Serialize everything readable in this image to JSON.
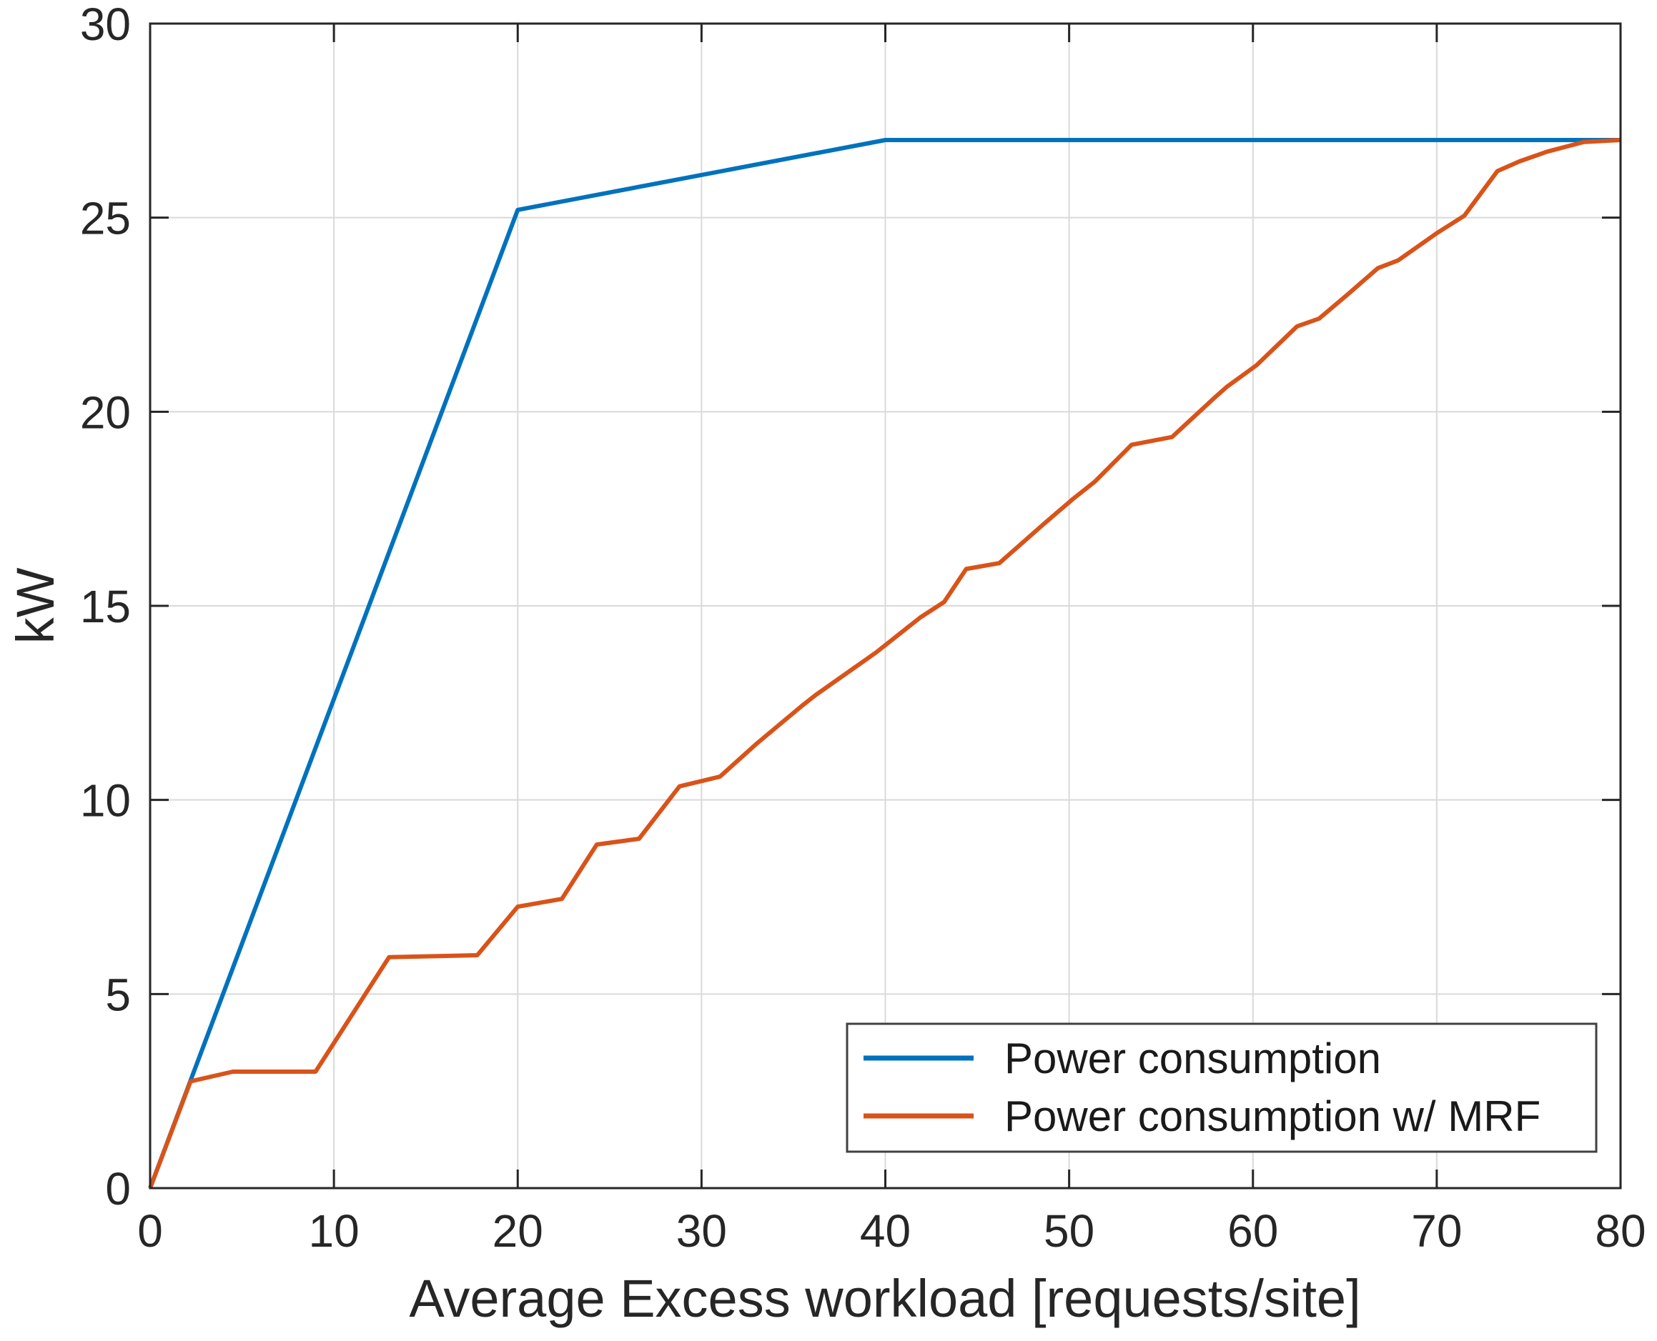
{
  "figure": {
    "background_color": "#ffffff"
  },
  "chart_data": {
    "type": "line",
    "title": "",
    "xlabel": "Average Excess workload [requests/site]",
    "ylabel": "kW",
    "xlim": [
      0,
      80
    ],
    "ylim": [
      0,
      30
    ],
    "xticks": [
      0,
      10,
      20,
      30,
      40,
      50,
      60,
      70,
      80
    ],
    "yticks": [
      0,
      5,
      10,
      15,
      20,
      25,
      30
    ],
    "grid": true,
    "grid_color": "#d9d9d9",
    "axis_color": "#262626",
    "legend_position": "inside-bottom-right",
    "series": [
      {
        "name": "Power consumption",
        "color": "#0072BD",
        "points": [
          [
            0,
            0
          ],
          [
            20,
            25.2
          ],
          [
            40,
            27
          ],
          [
            80,
            27
          ]
        ]
      },
      {
        "name": "Power consumption w/ MRF",
        "color": "#D95319",
        "points": [
          [
            0,
            0
          ],
          [
            2.2,
            2.75
          ],
          [
            4.5,
            3.0
          ],
          [
            9,
            3.0
          ],
          [
            13,
            5.95
          ],
          [
            17.8,
            6.0
          ],
          [
            20,
            7.25
          ],
          [
            22.4,
            7.45
          ],
          [
            24.3,
            8.85
          ],
          [
            26.6,
            9.0
          ],
          [
            28.8,
            10.35
          ],
          [
            31,
            10.6
          ],
          [
            33,
            11.45
          ],
          [
            35.4,
            12.4
          ],
          [
            36.2,
            12.7
          ],
          [
            38,
            13.3
          ],
          [
            39.5,
            13.8
          ],
          [
            41.9,
            14.7
          ],
          [
            43.2,
            15.1
          ],
          [
            44.4,
            15.95
          ],
          [
            46.2,
            16.1
          ],
          [
            48.6,
            17.1
          ],
          [
            50.2,
            17.75
          ],
          [
            51.4,
            18.2
          ],
          [
            53.4,
            19.15
          ],
          [
            55.6,
            19.35
          ],
          [
            58,
            20.4
          ],
          [
            58.6,
            20.65
          ],
          [
            60.2,
            21.2
          ],
          [
            62.4,
            22.2
          ],
          [
            63.6,
            22.4
          ],
          [
            65.1,
            23.0
          ],
          [
            66.8,
            23.7
          ],
          [
            67.9,
            23.9
          ],
          [
            70,
            24.6
          ],
          [
            71.5,
            25.05
          ],
          [
            73.3,
            26.2
          ],
          [
            74.5,
            26.45
          ],
          [
            76,
            26.7
          ],
          [
            78,
            26.95
          ],
          [
            80,
            27
          ]
        ]
      }
    ]
  }
}
